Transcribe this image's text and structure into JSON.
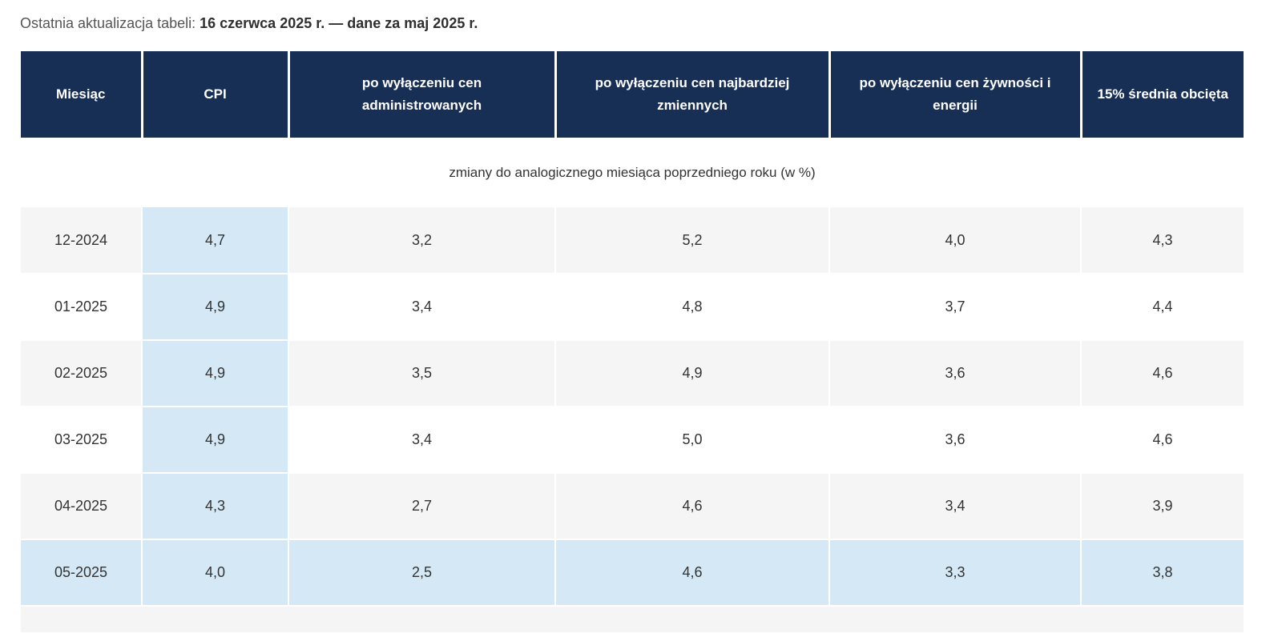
{
  "update": {
    "label": "Ostatnia aktualizacja tabeli: ",
    "value": "16 czerwca 2025 r. — dane za maj 2025 r."
  },
  "table": {
    "headers": [
      "Miesiąc",
      "CPI",
      "po wyłączeniu cen administrowanych",
      "po wyłączeniu cen najbardziej zmiennych",
      "po wyłączeniu cen żywności i energii",
      "15% średnia obcięta"
    ],
    "caption": "zmiany do analogicznego miesiąca poprzedniego roku (w %)",
    "rows": [
      [
        "12-2024",
        "4,7",
        "3,2",
        "5,2",
        "4,0",
        "4,3"
      ],
      [
        "01-2025",
        "4,9",
        "3,4",
        "4,8",
        "3,7",
        "4,4"
      ],
      [
        "02-2025",
        "4,9",
        "3,5",
        "4,9",
        "3,6",
        "4,6"
      ],
      [
        "03-2025",
        "4,9",
        "3,4",
        "5,0",
        "3,6",
        "4,6"
      ],
      [
        "04-2025",
        "4,3",
        "2,7",
        "4,6",
        "3,4",
        "3,9"
      ],
      [
        "05-2025",
        "4,0",
        "2,5",
        "4,6",
        "3,3",
        "3,8"
      ]
    ]
  },
  "colors": {
    "header_bg": "#172e55",
    "highlight_bg": "#d4e9f5",
    "stripe_bg": "#f5f5f5"
  }
}
